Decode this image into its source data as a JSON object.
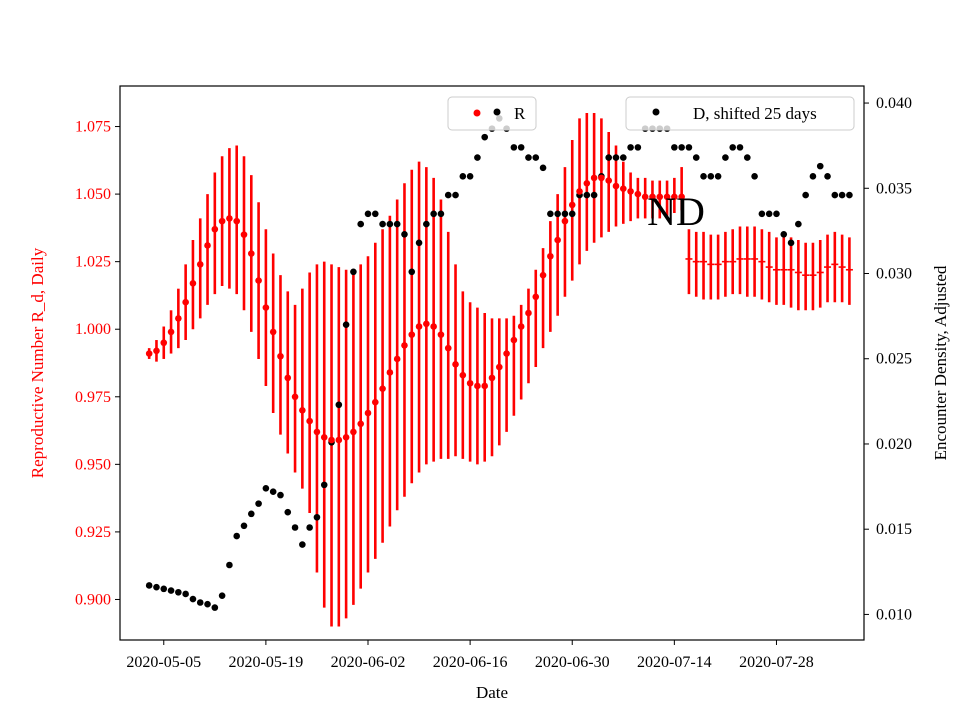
{
  "chart_data": {
    "type": "scatter",
    "xlabel": "Date",
    "x_ticks": [
      "2020-05-05",
      "2020-05-19",
      "2020-06-02",
      "2020-06-16",
      "2020-06-30",
      "2020-07-14",
      "2020-07-28"
    ],
    "x_start": "2020-04-29",
    "x_end": "2020-08-09",
    "left_axis": {
      "label": "Reproductive Number R_d, Daily",
      "color": "#ff0000",
      "ylim": [
        0.885,
        1.09
      ],
      "ticks": [
        "0.900",
        "0.925",
        "0.950",
        "0.975",
        "1.000",
        "1.025",
        "1.050",
        "1.075"
      ]
    },
    "right_axis": {
      "label": "Encounter Density, Adjusted",
      "color": "#000000",
      "ylim": [
        0.0085,
        0.041
      ],
      "ticks": [
        "0.010",
        "0.015",
        "0.020",
        "0.025",
        "0.030",
        "0.035",
        "0.040"
      ]
    },
    "annotation": "ND",
    "legend": [
      {
        "label": "R",
        "color": "#ff0000",
        "position": "top-center"
      },
      {
        "label": "D, shifted 25 days",
        "color": "#000000",
        "position": "top-right"
      }
    ],
    "series": [
      {
        "name": "R",
        "axis": "left",
        "color": "#ff0000",
        "dates": [
          "2020-05-03",
          "2020-05-04",
          "2020-05-05",
          "2020-05-06",
          "2020-05-07",
          "2020-05-08",
          "2020-05-09",
          "2020-05-10",
          "2020-05-11",
          "2020-05-12",
          "2020-05-13",
          "2020-05-14",
          "2020-05-15",
          "2020-05-16",
          "2020-05-17",
          "2020-05-18",
          "2020-05-19",
          "2020-05-20",
          "2020-05-21",
          "2020-05-22",
          "2020-05-23",
          "2020-05-24",
          "2020-05-25",
          "2020-05-26",
          "2020-05-27",
          "2020-05-28",
          "2020-05-29",
          "2020-05-30",
          "2020-05-31",
          "2020-06-01",
          "2020-06-02",
          "2020-06-03",
          "2020-06-04",
          "2020-06-05",
          "2020-06-06",
          "2020-06-07",
          "2020-06-08",
          "2020-06-09",
          "2020-06-10",
          "2020-06-11",
          "2020-06-12",
          "2020-06-13",
          "2020-06-14",
          "2020-06-15",
          "2020-06-16",
          "2020-06-17",
          "2020-06-18",
          "2020-06-19",
          "2020-06-20",
          "2020-06-21",
          "2020-06-22",
          "2020-06-23",
          "2020-06-24",
          "2020-06-25",
          "2020-06-26",
          "2020-06-27",
          "2020-06-28",
          "2020-06-29",
          "2020-06-30",
          "2020-07-01",
          "2020-07-02",
          "2020-07-03",
          "2020-07-04",
          "2020-07-05",
          "2020-07-06",
          "2020-07-07",
          "2020-07-08",
          "2020-07-09",
          "2020-07-10",
          "2020-07-11",
          "2020-07-12",
          "2020-07-13",
          "2020-07-14",
          "2020-07-15"
        ],
        "y": [
          0.991,
          0.992,
          0.995,
          0.999,
          1.004,
          1.01,
          1.017,
          1.024,
          1.031,
          1.037,
          1.04,
          1.041,
          1.04,
          1.035,
          1.028,
          1.018,
          1.008,
          0.999,
          0.99,
          0.982,
          0.975,
          0.97,
          0.966,
          0.962,
          0.96,
          0.959,
          0.959,
          0.96,
          0.962,
          0.965,
          0.969,
          0.973,
          0.978,
          0.984,
          0.989,
          0.994,
          0.998,
          1.001,
          1.002,
          1.001,
          0.998,
          0.993,
          0.987,
          0.983,
          0.98,
          0.979,
          0.979,
          0.982,
          0.986,
          0.991,
          0.996,
          1.001,
          1.006,
          1.012,
          1.02,
          1.027,
          1.033,
          1.04,
          1.046,
          1.051,
          1.054,
          1.056,
          1.056,
          1.055,
          1.053,
          1.052,
          1.051,
          1.05,
          1.049,
          1.049,
          1.049,
          1.049,
          1.049,
          1.049
        ],
        "err_low": [
          0.989,
          0.988,
          0.989,
          0.991,
          0.993,
          0.996,
          1.0,
          1.004,
          1.009,
          1.013,
          1.016,
          1.015,
          1.013,
          1.007,
          0.999,
          0.989,
          0.979,
          0.969,
          0.961,
          0.954,
          0.947,
          0.941,
          0.932,
          0.91,
          0.897,
          0.89,
          0.89,
          0.893,
          0.898,
          0.904,
          0.91,
          0.915,
          0.921,
          0.927,
          0.933,
          0.938,
          0.943,
          0.947,
          0.95,
          0.951,
          0.952,
          0.952,
          0.953,
          0.952,
          0.951,
          0.95,
          0.951,
          0.953,
          0.957,
          0.962,
          0.968,
          0.974,
          0.98,
          0.986,
          0.993,
          0.999,
          1.005,
          1.012,
          1.018,
          1.024,
          1.029,
          1.032,
          1.034,
          1.036,
          1.038,
          1.039,
          1.04,
          1.041,
          1.041,
          1.041,
          1.041,
          1.042,
          1.043,
          1.044
        ],
        "err_high": [
          0.993,
          0.996,
          1.001,
          1.007,
          1.015,
          1.024,
          1.033,
          1.041,
          1.05,
          1.058,
          1.064,
          1.067,
          1.068,
          1.064,
          1.057,
          1.047,
          1.037,
          1.028,
          1.02,
          1.014,
          1.009,
          1.015,
          1.021,
          1.024,
          1.025,
          1.024,
          1.023,
          1.022,
          1.022,
          1.024,
          1.027,
          1.032,
          1.037,
          1.042,
          1.048,
          1.054,
          1.059,
          1.062,
          1.06,
          1.056,
          1.048,
          1.036,
          1.024,
          1.014,
          1.01,
          1.008,
          1.006,
          1.004,
          1.004,
          1.004,
          1.005,
          1.009,
          1.015,
          1.022,
          1.03,
          1.04,
          1.05,
          1.06,
          1.07,
          1.078,
          1.08,
          1.08,
          1.078,
          1.073,
          1.068,
          1.062,
          1.058,
          1.056,
          1.056,
          1.055,
          1.055,
          1.055,
          1.056,
          1.06
        ]
      },
      {
        "name": "R",
        "axis": "left",
        "color": "#ff0000",
        "dates": [
          "2020-07-16",
          "2020-07-17",
          "2020-07-18",
          "2020-07-19",
          "2020-07-20",
          "2020-07-21",
          "2020-07-22",
          "2020-07-23",
          "2020-07-24",
          "2020-07-25",
          "2020-07-26",
          "2020-07-27",
          "2020-07-28",
          "2020-07-29",
          "2020-07-30",
          "2020-07-31",
          "2020-08-01",
          "2020-08-02",
          "2020-08-03",
          "2020-08-04",
          "2020-08-05",
          "2020-08-06",
          "2020-08-07"
        ],
        "y": [
          1.026,
          1.025,
          1.025,
          1.024,
          1.024,
          1.025,
          1.025,
          1.026,
          1.026,
          1.026,
          1.025,
          1.023,
          1.022,
          1.022,
          1.022,
          1.021,
          1.02,
          1.02,
          1.021,
          1.023,
          1.024,
          1.023,
          1.022
        ],
        "err_low": [
          1.013,
          1.012,
          1.011,
          1.011,
          1.011,
          1.012,
          1.013,
          1.013,
          1.012,
          1.012,
          1.011,
          1.01,
          1.009,
          1.009,
          1.008,
          1.007,
          1.007,
          1.007,
          1.008,
          1.01,
          1.01,
          1.01,
          1.009
        ],
        "err_high": [
          1.037,
          1.036,
          1.036,
          1.035,
          1.035,
          1.036,
          1.037,
          1.038,
          1.038,
          1.038,
          1.037,
          1.036,
          1.034,
          1.034,
          1.034,
          1.033,
          1.032,
          1.032,
          1.033,
          1.035,
          1.036,
          1.035,
          1.034
        ]
      },
      {
        "name": "D, shifted 25 days",
        "axis": "right",
        "color": "#000000",
        "dates": [
          "2020-05-03",
          "2020-05-04",
          "2020-05-05",
          "2020-05-06",
          "2020-05-07",
          "2020-05-08",
          "2020-05-09",
          "2020-05-10",
          "2020-05-11",
          "2020-05-12",
          "2020-05-13",
          "2020-05-14",
          "2020-05-15",
          "2020-05-16",
          "2020-05-17",
          "2020-05-18",
          "2020-05-19",
          "2020-05-20",
          "2020-05-21",
          "2020-05-22",
          "2020-05-23",
          "2020-05-24",
          "2020-05-25",
          "2020-05-26",
          "2020-05-27",
          "2020-05-28",
          "2020-05-29",
          "2020-05-30",
          "2020-05-31",
          "2020-06-01",
          "2020-06-02",
          "2020-06-03",
          "2020-06-04",
          "2020-06-05",
          "2020-06-06",
          "2020-06-07",
          "2020-06-08",
          "2020-06-09",
          "2020-06-10",
          "2020-06-11",
          "2020-06-12",
          "2020-06-13",
          "2020-06-14",
          "2020-06-15",
          "2020-06-16",
          "2020-06-17",
          "2020-06-18",
          "2020-06-19",
          "2020-06-20",
          "2020-06-21",
          "2020-06-22",
          "2020-06-23",
          "2020-06-24",
          "2020-06-25",
          "2020-06-26",
          "2020-06-27",
          "2020-06-28",
          "2020-06-29",
          "2020-06-30",
          "2020-07-01",
          "2020-07-02",
          "2020-07-03",
          "2020-07-04",
          "2020-07-05",
          "2020-07-06",
          "2020-07-07",
          "2020-07-08",
          "2020-07-09",
          "2020-07-10",
          "2020-07-11",
          "2020-07-12",
          "2020-07-13",
          "2020-07-14",
          "2020-07-15",
          "2020-07-16",
          "2020-07-17",
          "2020-07-18",
          "2020-07-19",
          "2020-07-20",
          "2020-07-21",
          "2020-07-22",
          "2020-07-23",
          "2020-07-24",
          "2020-07-25",
          "2020-07-26",
          "2020-07-27",
          "2020-07-28",
          "2020-07-29",
          "2020-07-30",
          "2020-07-31",
          "2020-08-01",
          "2020-08-02",
          "2020-08-03",
          "2020-08-04",
          "2020-08-05",
          "2020-08-06",
          "2020-08-07"
        ],
        "y": [
          0.0117,
          0.0116,
          0.0115,
          0.0114,
          0.0113,
          0.0112,
          0.0109,
          0.0107,
          0.0106,
          0.0104,
          0.0111,
          0.0129,
          0.0146,
          0.0152,
          0.0159,
          0.0165,
          0.0174,
          0.0172,
          0.017,
          0.016,
          0.0151,
          0.0141,
          0.0151,
          0.0157,
          0.0176,
          0.0201,
          0.0223,
          0.027,
          0.0301,
          0.0329,
          0.0335,
          0.0335,
          0.0329,
          0.0329,
          0.0329,
          0.0323,
          0.0301,
          0.0318,
          0.0329,
          0.0335,
          0.0335,
          0.0346,
          0.0346,
          0.0357,
          0.0357,
          0.0368,
          0.038,
          0.0385,
          0.0391,
          0.0385,
          0.0374,
          0.0374,
          0.0368,
          0.0368,
          0.0362,
          0.0335,
          0.0335,
          0.0335,
          0.0335,
          0.0346,
          0.0346,
          0.0346,
          0.0357,
          0.0368,
          0.0368,
          0.0368,
          0.0374,
          0.0374,
          0.0385,
          0.0385,
          0.0385,
          0.0385,
          0.0374,
          0.0374,
          0.0374,
          0.0368,
          0.0357,
          0.0357,
          0.0357,
          0.0368,
          0.0374,
          0.0374,
          0.0368,
          0.0357,
          0.0335,
          0.0335,
          0.0335,
          0.0323,
          0.0318,
          0.0329,
          0.0346,
          0.0357,
          0.0363,
          0.0357,
          0.0346,
          0.0346,
          0.0346
        ]
      }
    ]
  }
}
